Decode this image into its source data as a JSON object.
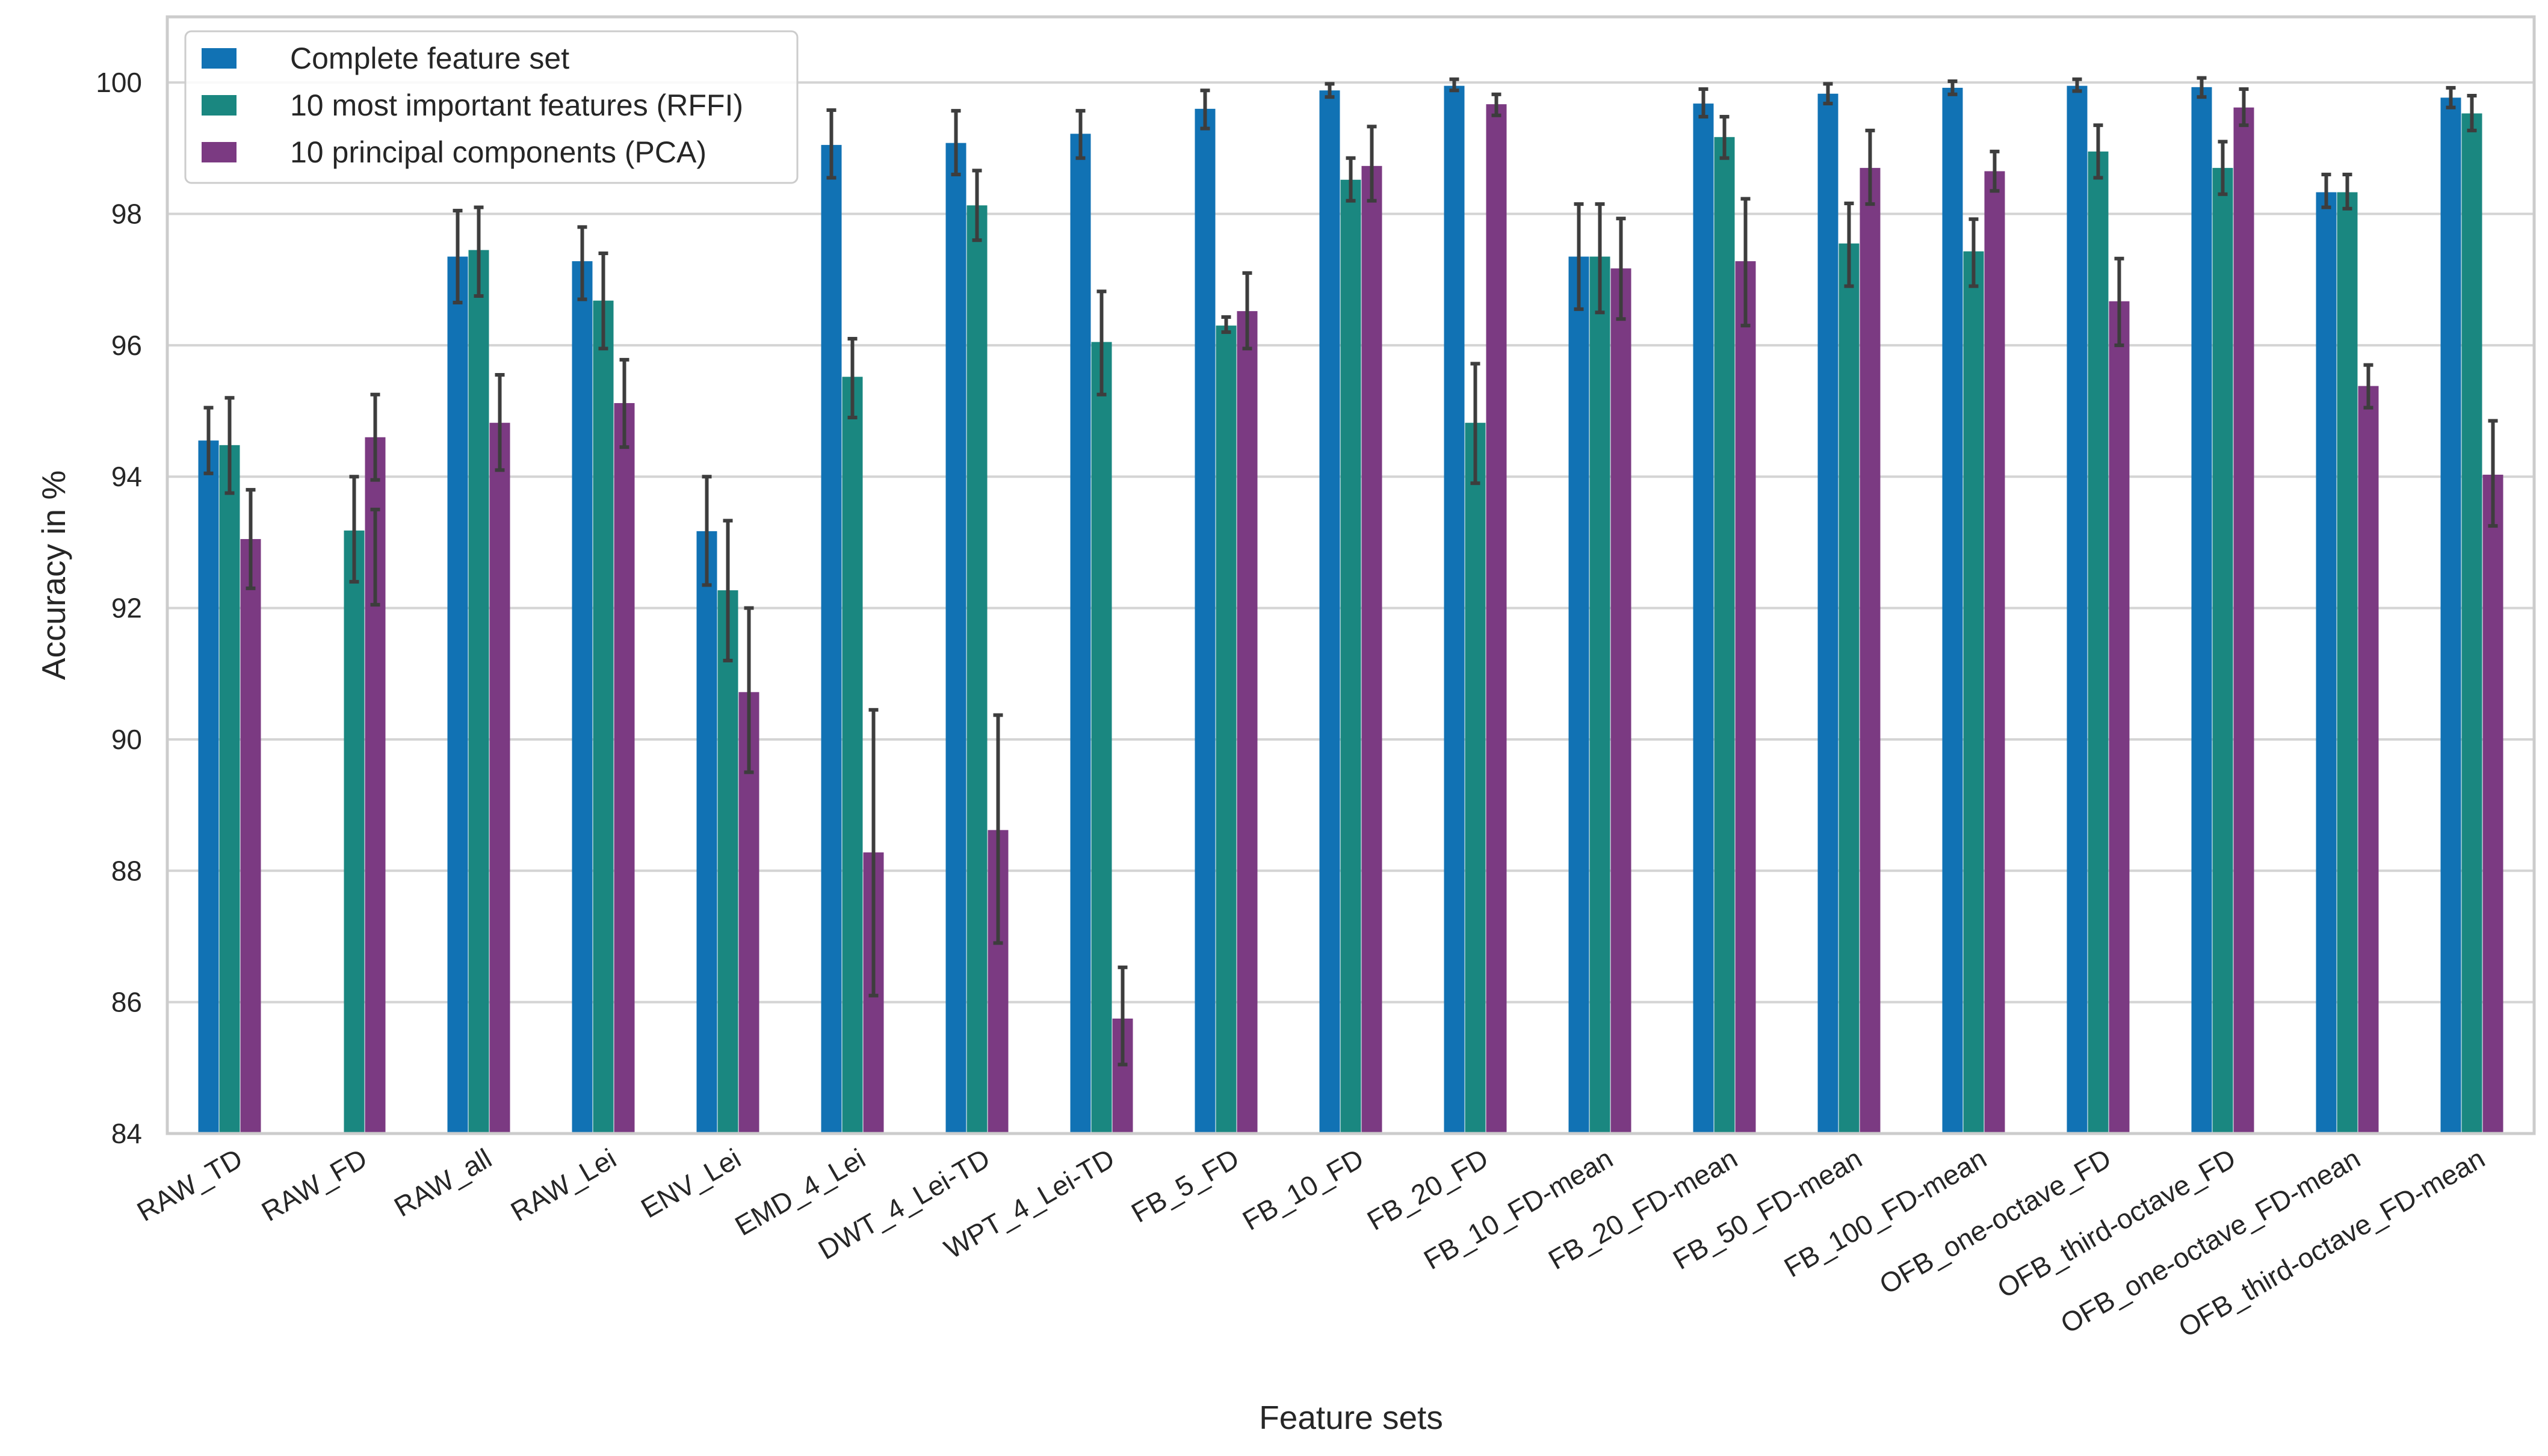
{
  "chart_data": {
    "type": "bar",
    "title": "",
    "xlabel": "Feature sets",
    "ylabel": "Accuracy in %",
    "ylim": [
      84,
      101
    ],
    "yticks": [
      84,
      86,
      88,
      90,
      92,
      94,
      96,
      98,
      100
    ],
    "grid": true,
    "legend_position": "top-left",
    "categories": [
      "RAW_TD",
      "RAW_FD",
      "RAW_all",
      "RAW_Lei",
      "ENV_Lei",
      "EMD_4_Lei",
      "DWT_4_Lei-TD",
      "WPT_4_Lei-TD",
      "FB_5_FD",
      "FB_10_FD",
      "FB_20_FD",
      "FB_10_FD-mean",
      "FB_20_FD-mean",
      "FB_50_FD-mean",
      "FB_100_FD-mean",
      "OFB_one-octave_FD",
      "OFB_third-octave_FD",
      "OFB_one-octave_FD-mean",
      "OFB_third-octave_FD-mean"
    ],
    "series": [
      {
        "name": "Complete feature set",
        "color": "#1172b4",
        "values": [
          94.55,
          null,
          97.35,
          97.28,
          93.17,
          99.05,
          99.08,
          99.22,
          99.6,
          99.88,
          99.95,
          97.35,
          99.68,
          99.83,
          99.92,
          99.95,
          99.93,
          98.33,
          99.77
        ],
        "err_low": [
          94.05,
          null,
          96.65,
          96.7,
          92.35,
          98.55,
          98.6,
          98.85,
          99.3,
          99.78,
          99.88,
          96.55,
          99.48,
          99.68,
          99.82,
          99.87,
          99.78,
          98.1,
          99.62
        ],
        "err_high": [
          95.05,
          null,
          98.05,
          97.8,
          94.0,
          99.58,
          99.57,
          99.57,
          99.88,
          99.98,
          100.05,
          98.15,
          99.9,
          99.98,
          100.02,
          100.05,
          100.07,
          98.6,
          99.92
        ]
      },
      {
        "name": "10 most important features (RFFI)",
        "color": "#1a8780",
        "values": [
          94.48,
          93.18,
          97.45,
          96.68,
          92.27,
          95.52,
          98.13,
          96.05,
          96.3,
          98.52,
          94.82,
          97.35,
          99.17,
          97.55,
          97.43,
          98.95,
          98.7,
          98.33,
          99.53
        ],
        "err_low": [
          93.75,
          92.4,
          96.75,
          95.95,
          91.2,
          94.9,
          97.6,
          95.25,
          96.2,
          98.2,
          93.9,
          96.5,
          98.85,
          96.9,
          96.9,
          98.55,
          98.3,
          98.08,
          99.27
        ],
        "err_high": [
          95.2,
          94.0,
          98.1,
          97.4,
          93.33,
          96.1,
          98.66,
          96.82,
          96.43,
          98.85,
          95.72,
          98.15,
          99.48,
          98.16,
          97.92,
          99.35,
          99.1,
          98.6,
          99.8
        ]
      },
      {
        "name": "10 principal components (PCA)",
        "color": "#7b3a82",
        "values": [
          93.05,
          92.78,
          94.82,
          95.12,
          90.72,
          88.28,
          88.62,
          85.75,
          96.52,
          98.73,
          99.67,
          97.17,
          97.28,
          98.7,
          98.65,
          96.67,
          99.62,
          95.38,
          94.03
        ],
        "err_low": [
          92.3,
          92.05,
          94.1,
          94.45,
          89.5,
          86.1,
          86.9,
          85.05,
          95.95,
          98.2,
          99.5,
          96.4,
          96.3,
          98.15,
          98.35,
          96.0,
          99.35,
          95.05,
          93.25
        ],
        "err_high": [
          93.8,
          93.5,
          95.55,
          95.78,
          92.0,
          90.45,
          90.37,
          86.53,
          97.1,
          99.33,
          99.82,
          97.93,
          98.23,
          99.27,
          98.95,
          97.32,
          99.9,
          95.7,
          94.85
        ]
      },
      {
        "name": "",
        "color": "#7b3a82",
        "values": [
          null,
          94.6,
          null,
          null,
          null,
          null,
          null,
          null,
          null,
          null,
          null,
          null,
          null,
          null,
          null,
          null,
          null,
          null,
          null
        ],
        "err_low": [
          null,
          93.95,
          null,
          null,
          null,
          null,
          null,
          null,
          null,
          null,
          null,
          null,
          null,
          null,
          null,
          null,
          null,
          null,
          null
        ],
        "err_high": [
          null,
          95.25,
          null,
          null,
          null,
          null,
          null,
          null,
          null,
          null,
          null,
          null,
          null,
          null,
          null,
          null,
          null,
          null,
          null
        ]
      }
    ]
  }
}
